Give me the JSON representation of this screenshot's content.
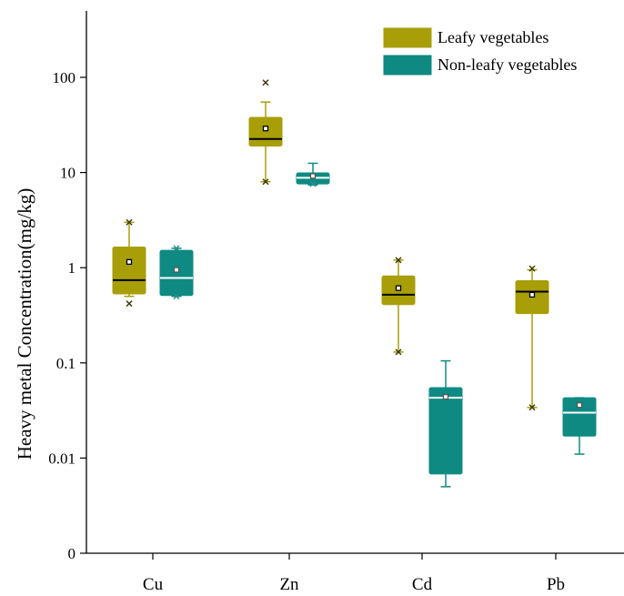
{
  "chart_data": {
    "type": "box",
    "title": "",
    "xlabel": "",
    "ylabel": "Heavy metal Concentration(mg/kg)",
    "yscale": "log",
    "ylim": [
      0.001,
      500
    ],
    "yticks": [
      {
        "value": 0.001,
        "label": "0"
      },
      {
        "value": 0.01,
        "label": "0.01"
      },
      {
        "value": 0.1,
        "label": "0.1"
      },
      {
        "value": 1,
        "label": "1"
      },
      {
        "value": 10,
        "label": "10"
      },
      {
        "value": 100,
        "label": "100"
      }
    ],
    "categories": [
      "Cu",
      "Zn",
      "Cd",
      "Pb"
    ],
    "legend_position": "top-right",
    "series": [
      {
        "name": "Leafy vegetables",
        "color": "#A89E08",
        "median_color": "#000000",
        "boxes": [
          {
            "whisker_low": 0.5,
            "q1": 0.53,
            "median": 0.74,
            "q3": 1.65,
            "whisker_high": 3.0,
            "mean": 1.15,
            "outliers": [
              3.0,
              0.42
            ]
          },
          {
            "whisker_low": 8.0,
            "q1": 19.0,
            "median": 22.5,
            "q3": 38.0,
            "whisker_high": 55.0,
            "mean": 29.0,
            "outliers": [
              8.0,
              88.0
            ]
          },
          {
            "whisker_low": 0.13,
            "q1": 0.41,
            "median": 0.52,
            "q3": 0.82,
            "whisker_high": 1.2,
            "mean": 0.61,
            "outliers": [
              1.2,
              0.13
            ]
          },
          {
            "whisker_low": 0.034,
            "q1": 0.33,
            "median": 0.56,
            "q3": 0.73,
            "whisker_high": 0.95,
            "mean": 0.52,
            "outliers": [
              0.034,
              0.98
            ]
          }
        ]
      },
      {
        "name": "Non-leafy vegetables",
        "color": "#0E8A82",
        "median_color": "#ffffff",
        "boxes": [
          {
            "whisker_low": 0.5,
            "q1": 0.51,
            "median": 0.78,
            "q3": 1.52,
            "whisker_high": 1.6,
            "mean": 0.95,
            "outliers": [
              1.6,
              0.5
            ]
          },
          {
            "whisker_low": 7.4,
            "q1": 7.6,
            "median": 8.8,
            "q3": 9.9,
            "whisker_high": 12.5,
            "mean": 9.2,
            "outliers": [
              7.6
            ]
          },
          {
            "whisker_low": 0.005,
            "q1": 0.0068,
            "median": 0.043,
            "q3": 0.055,
            "whisker_high": 0.105,
            "mean": 0.044,
            "outliers": []
          },
          {
            "whisker_low": 0.011,
            "q1": 0.017,
            "median": 0.03,
            "q3": 0.043,
            "whisker_high": 0.043,
            "mean": 0.036,
            "outliers": []
          }
        ]
      }
    ]
  }
}
